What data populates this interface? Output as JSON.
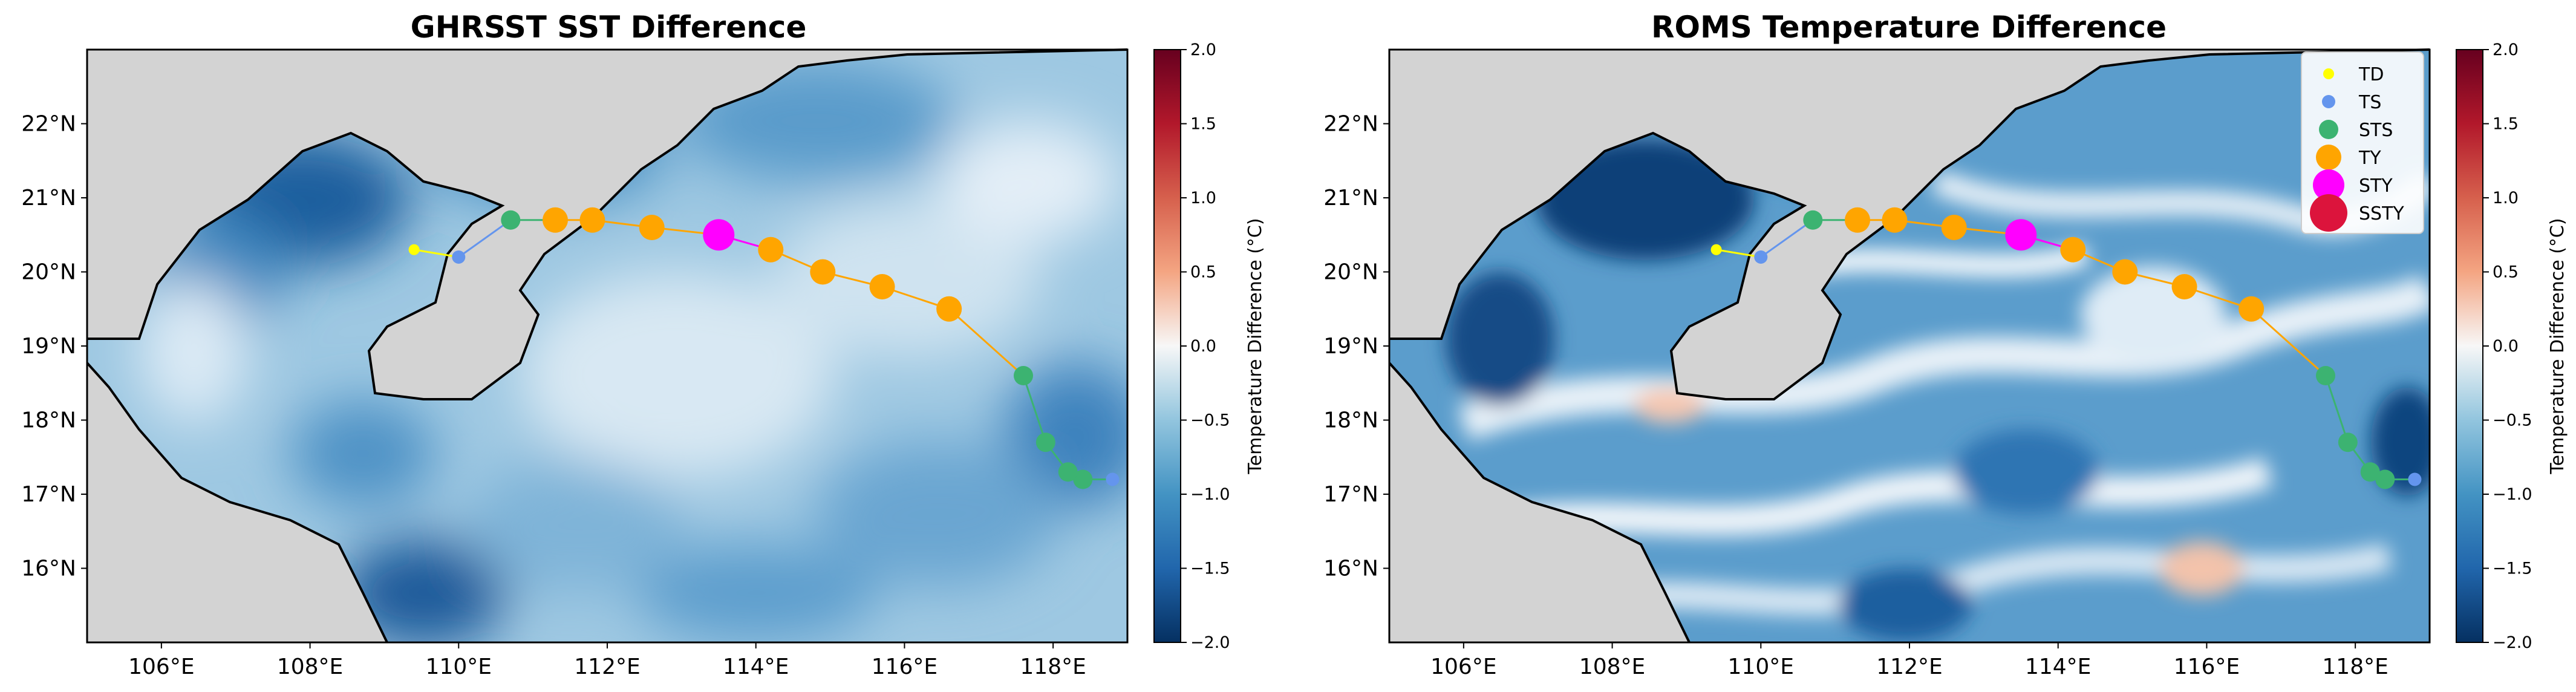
{
  "chart_data": [
    {
      "type": "map",
      "title": "GHRSST SST Difference",
      "lon_range": [
        105,
        119
      ],
      "lat_range": [
        15,
        23
      ],
      "xticks": [
        "106°E",
        "108°E",
        "110°E",
        "112°E",
        "114°E",
        "116°E",
        "118°E"
      ],
      "yticks": [
        "16°N",
        "17°N",
        "18°N",
        "19°N",
        "20°N",
        "21°N",
        "22°N"
      ],
      "colorbar": {
        "label": "Temperature Difference (°C)",
        "range": [
          -2.0,
          2.0
        ],
        "ticks": [
          "−2.0",
          "−1.5",
          "−1.0",
          "−0.5",
          "0.0",
          "0.5",
          "1.0",
          "1.5",
          "2.0"
        ]
      },
      "legend": false
    },
    {
      "type": "map",
      "title": "ROMS Temperature Difference",
      "lon_range": [
        105,
        119
      ],
      "lat_range": [
        15,
        23
      ],
      "xticks": [
        "106°E",
        "108°E",
        "110°E",
        "112°E",
        "114°E",
        "116°E",
        "118°E"
      ],
      "yticks": [
        "16°N",
        "17°N",
        "18°N",
        "19°N",
        "20°N",
        "21°N",
        "22°N"
      ],
      "colorbar": {
        "label": "Temperature Difference (°C)",
        "range": [
          -2.0,
          2.0
        ],
        "ticks": [
          "−2.0",
          "−1.5",
          "−1.0",
          "−0.5",
          "0.0",
          "0.5",
          "1.0",
          "1.5",
          "2.0"
        ]
      },
      "legend": true
    }
  ],
  "track": [
    {
      "lon": 118.8,
      "lat": 17.2,
      "cat": "TS"
    },
    {
      "lon": 118.4,
      "lat": 17.2,
      "cat": "STS"
    },
    {
      "lon": 118.2,
      "lat": 17.3,
      "cat": "STS"
    },
    {
      "lon": 117.9,
      "lat": 17.7,
      "cat": "STS"
    },
    {
      "lon": 117.6,
      "lat": 18.6,
      "cat": "STS"
    },
    {
      "lon": 116.6,
      "lat": 19.5,
      "cat": "TY"
    },
    {
      "lon": 115.7,
      "lat": 19.8,
      "cat": "TY"
    },
    {
      "lon": 114.9,
      "lat": 20.0,
      "cat": "TY"
    },
    {
      "lon": 114.2,
      "lat": 20.3,
      "cat": "TY"
    },
    {
      "lon": 113.5,
      "lat": 20.5,
      "cat": "STY"
    },
    {
      "lon": 112.6,
      "lat": 20.6,
      "cat": "TY"
    },
    {
      "lon": 111.8,
      "lat": 20.7,
      "cat": "TY"
    },
    {
      "lon": 111.3,
      "lat": 20.7,
      "cat": "TY"
    },
    {
      "lon": 110.7,
      "lat": 20.7,
      "cat": "STS"
    },
    {
      "lon": 110.0,
      "lat": 20.2,
      "cat": "TS"
    },
    {
      "lon": 109.4,
      "lat": 20.3,
      "cat": "TD"
    }
  ],
  "categories": {
    "TD": {
      "label": "TD",
      "color": "#ffff00"
    },
    "TS": {
      "label": "TS",
      "color": "#6495ed"
    },
    "STS": {
      "label": "STS",
      "color": "#3cb371"
    },
    "TY": {
      "label": "TY",
      "color": "#ffa500"
    },
    "STY": {
      "label": "STY",
      "color": "#ff00ff"
    },
    "SSTY": {
      "label": "SSTY",
      "color": "#dc143c"
    }
  },
  "legend_order": [
    "TD",
    "TS",
    "STS",
    "TY",
    "STY",
    "SSTY"
  ]
}
